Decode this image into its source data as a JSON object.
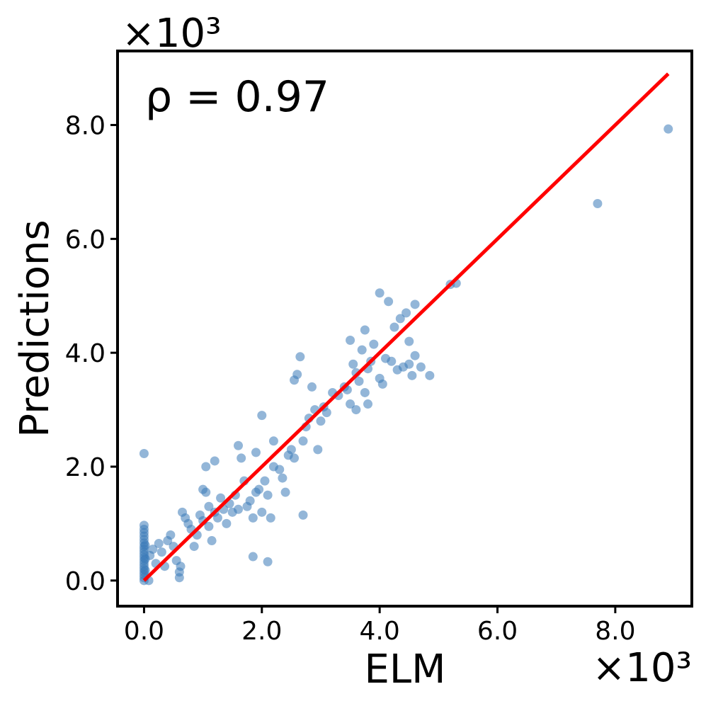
{
  "chart_data": {
    "type": "scatter",
    "xlabel": "ELM",
    "ylabel": "Predictions",
    "x_multiplier": "×10³",
    "y_multiplier": "×10³",
    "annotation": "ρ = 0.97",
    "xlim": [
      -0.45,
      9.3
    ],
    "ylim": [
      -0.45,
      9.3
    ],
    "x_ticks": [
      0.0,
      2.0,
      4.0,
      6.0,
      8.0
    ],
    "y_ticks": [
      0.0,
      2.0,
      4.0,
      6.0,
      8.0
    ],
    "x_tick_labels": [
      "0.0",
      "2.0",
      "4.0",
      "6.0",
      "8.0"
    ],
    "y_tick_labels": [
      "0.0",
      "2.0",
      "4.0",
      "6.0",
      "8.0"
    ],
    "grid": false,
    "point_color": "#3a7ab8",
    "line_color": "#ff0000",
    "fit_line": {
      "x": [
        0.0,
        8.9
      ],
      "y": [
        0.0,
        8.9
      ]
    },
    "points": [
      [
        0,
        2.23
      ],
      [
        0,
        0.97
      ],
      [
        0,
        0.9
      ],
      [
        0,
        0.84
      ],
      [
        0,
        0.78
      ],
      [
        0,
        0.72
      ],
      [
        0,
        0.66
      ],
      [
        0,
        0.6
      ],
      [
        0,
        0.55
      ],
      [
        0,
        0.5
      ],
      [
        0,
        0.45
      ],
      [
        0,
        0.4
      ],
      [
        0,
        0.35
      ],
      [
        0,
        0.3
      ],
      [
        0,
        0.25
      ],
      [
        0,
        0.2
      ],
      [
        0,
        0.15
      ],
      [
        0,
        0.1
      ],
      [
        0,
        0.05
      ],
      [
        0,
        0.0
      ],
      [
        0.02,
        0.62
      ],
      [
        0.02,
        0.38
      ],
      [
        0.02,
        0.18
      ],
      [
        0.08,
        0.0
      ],
      [
        0.1,
        0.44
      ],
      [
        0.15,
        0.55
      ],
      [
        0.2,
        0.3
      ],
      [
        0.25,
        0.65
      ],
      [
        0.3,
        0.5
      ],
      [
        0.35,
        0.25
      ],
      [
        0.4,
        0.7
      ],
      [
        0.45,
        0.8
      ],
      [
        0.5,
        0.6
      ],
      [
        0.55,
        0.35
      ],
      [
        0.6,
        0.15
      ],
      [
        0.6,
        0.05
      ],
      [
        0.62,
        0.25
      ],
      [
        0.65,
        1.2
      ],
      [
        0.7,
        1.1
      ],
      [
        0.75,
        1.0
      ],
      [
        0.8,
        0.9
      ],
      [
        0.85,
        0.6
      ],
      [
        0.9,
        0.8
      ],
      [
        0.95,
        1.15
      ],
      [
        1.0,
        1.05
      ],
      [
        1.0,
        1.6
      ],
      [
        1.05,
        2.0
      ],
      [
        1.05,
        1.55
      ],
      [
        1.1,
        0.95
      ],
      [
        1.1,
        1.3
      ],
      [
        1.15,
        0.7
      ],
      [
        1.2,
        1.2
      ],
      [
        1.2,
        2.1
      ],
      [
        1.25,
        1.1
      ],
      [
        1.3,
        1.45
      ],
      [
        1.35,
        1.25
      ],
      [
        1.4,
        1.0
      ],
      [
        1.45,
        1.35
      ],
      [
        1.5,
        1.2
      ],
      [
        1.55,
        1.5
      ],
      [
        1.6,
        2.37
      ],
      [
        1.6,
        1.25
      ],
      [
        1.65,
        2.15
      ],
      [
        1.7,
        1.75
      ],
      [
        1.75,
        1.3
      ],
      [
        1.8,
        1.4
      ],
      [
        1.85,
        0.42
      ],
      [
        1.85,
        1.1
      ],
      [
        1.9,
        2.25
      ],
      [
        1.9,
        1.55
      ],
      [
        1.95,
        1.6
      ],
      [
        2.0,
        2.9
      ],
      [
        2.0,
        1.2
      ],
      [
        2.05,
        1.75
      ],
      [
        2.1,
        0.33
      ],
      [
        2.1,
        1.5
      ],
      [
        2.15,
        1.1
      ],
      [
        2.2,
        2.45
      ],
      [
        2.2,
        2.0
      ],
      [
        2.3,
        1.95
      ],
      [
        2.35,
        1.8
      ],
      [
        2.4,
        1.55
      ],
      [
        2.45,
        2.2
      ],
      [
        2.5,
        2.3
      ],
      [
        2.55,
        2.15
      ],
      [
        2.55,
        3.52
      ],
      [
        2.6,
        3.62
      ],
      [
        2.65,
        3.93
      ],
      [
        2.7,
        2.45
      ],
      [
        2.7,
        1.15
      ],
      [
        2.75,
        2.7
      ],
      [
        2.8,
        2.85
      ],
      [
        2.85,
        3.4
      ],
      [
        2.9,
        3.0
      ],
      [
        2.95,
        2.3
      ],
      [
        3.0,
        2.8
      ],
      [
        3.05,
        3.05
      ],
      [
        3.1,
        2.95
      ],
      [
        3.2,
        3.3
      ],
      [
        3.3,
        3.25
      ],
      [
        3.4,
        3.4
      ],
      [
        3.45,
        3.35
      ],
      [
        3.5,
        3.1
      ],
      [
        3.5,
        4.22
      ],
      [
        3.55,
        3.8
      ],
      [
        3.6,
        3.0
      ],
      [
        3.6,
        3.65
      ],
      [
        3.65,
        3.5
      ],
      [
        3.7,
        4.05
      ],
      [
        3.75,
        3.3
      ],
      [
        3.75,
        4.4
      ],
      [
        3.8,
        3.72
      ],
      [
        3.8,
        3.1
      ],
      [
        3.85,
        3.85
      ],
      [
        3.9,
        4.15
      ],
      [
        4.0,
        3.55
      ],
      [
        4.0,
        5.05
      ],
      [
        4.05,
        3.45
      ],
      [
        4.1,
        3.9
      ],
      [
        4.15,
        4.9
      ],
      [
        4.2,
        3.85
      ],
      [
        4.25,
        4.45
      ],
      [
        4.3,
        3.7
      ],
      [
        4.35,
        4.6
      ],
      [
        4.4,
        3.75
      ],
      [
        4.45,
        4.7
      ],
      [
        4.5,
        4.2
      ],
      [
        4.5,
        3.8
      ],
      [
        4.55,
        3.6
      ],
      [
        4.6,
        4.85
      ],
      [
        4.6,
        3.95
      ],
      [
        4.7,
        3.75
      ],
      [
        4.85,
        3.6
      ],
      [
        5.2,
        5.2
      ],
      [
        5.3,
        5.22
      ],
      [
        7.7,
        6.62
      ],
      [
        8.9,
        7.93
      ]
    ]
  }
}
